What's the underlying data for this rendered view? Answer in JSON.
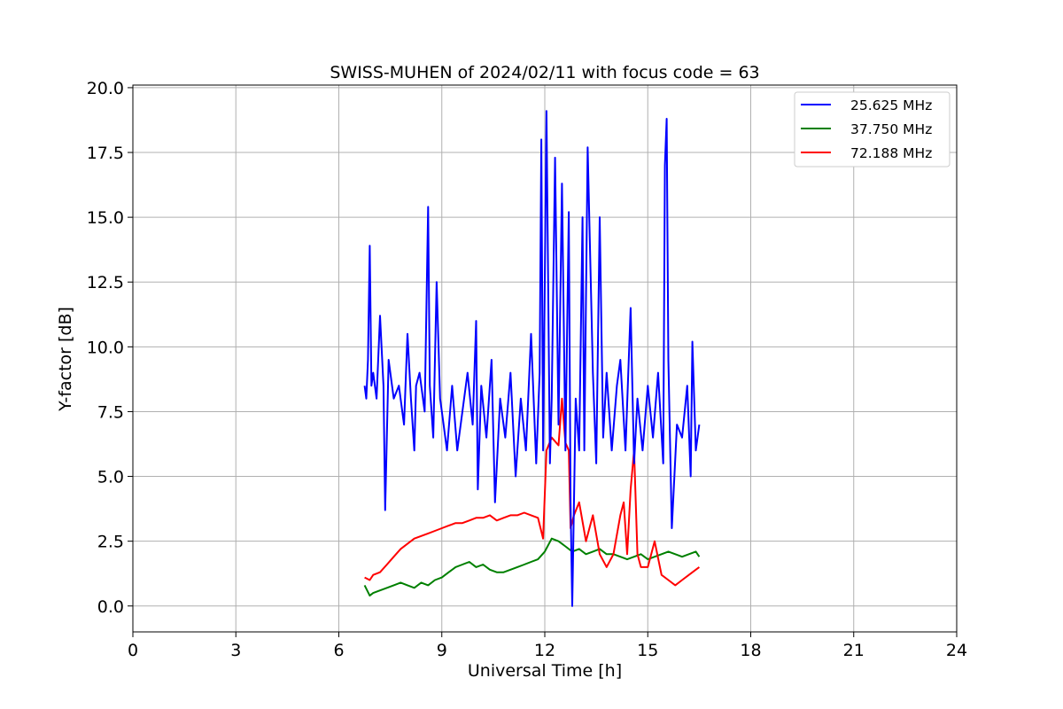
{
  "chart_data": {
    "type": "line",
    "title": "SWISS-MUHEN of 2024/02/11 with focus code = 63",
    "xlabel": "Universal Time [h]",
    "ylabel": "Y-factor [dB]",
    "xlim": [
      0,
      24
    ],
    "ylim": [
      -1.0,
      20.1
    ],
    "x_ticks": [
      0,
      3,
      6,
      9,
      12,
      15,
      18,
      21,
      24
    ],
    "y_ticks": [
      0.0,
      2.5,
      5.0,
      7.5,
      10.0,
      12.5,
      15.0,
      17.5,
      20.0
    ],
    "x_tick_labels": [
      "0",
      "3",
      "6",
      "9",
      "12",
      "15",
      "18",
      "21",
      "24"
    ],
    "y_tick_labels": [
      "0.0",
      "2.5",
      "5.0",
      "7.5",
      "10.0",
      "12.5",
      "15.0",
      "17.5",
      "20.0"
    ],
    "grid": true,
    "legend_position": "top-right",
    "series": [
      {
        "name": "25.625 MHz",
        "color": "#0000ff",
        "x": [
          6.75,
          6.8,
          6.85,
          6.9,
          6.95,
          7.0,
          7.1,
          7.2,
          7.3,
          7.35,
          7.45,
          7.6,
          7.75,
          7.9,
          8.0,
          8.1,
          8.2,
          8.25,
          8.35,
          8.5,
          8.6,
          8.65,
          8.75,
          8.85,
          8.95,
          9.0,
          9.15,
          9.3,
          9.45,
          9.6,
          9.75,
          9.9,
          10.0,
          10.05,
          10.15,
          10.3,
          10.45,
          10.55,
          10.7,
          10.85,
          11.0,
          11.15,
          11.3,
          11.45,
          11.6,
          11.75,
          11.85,
          11.9,
          11.95,
          12.05,
          12.15,
          12.2,
          12.3,
          12.4,
          12.5,
          12.6,
          12.7,
          12.75,
          12.8,
          12.9,
          13.0,
          13.1,
          13.15,
          13.25,
          13.4,
          13.5,
          13.6,
          13.7,
          13.8,
          13.95,
          14.1,
          14.2,
          14.35,
          14.5,
          14.6,
          14.7,
          14.85,
          15.0,
          15.15,
          15.3,
          15.45,
          15.5,
          15.55,
          15.6,
          15.7,
          15.85,
          16.0,
          16.15,
          16.25,
          16.3,
          16.4,
          16.5
        ],
        "y": [
          8.5,
          8.0,
          9.5,
          13.9,
          8.5,
          9.0,
          8.0,
          11.2,
          8.5,
          3.7,
          9.5,
          8.0,
          8.5,
          7.0,
          10.5,
          8.0,
          6.0,
          8.5,
          9.0,
          7.5,
          15.4,
          8.5,
          6.5,
          12.5,
          8.0,
          7.5,
          6.0,
          8.5,
          6.0,
          7.5,
          9.0,
          7.0,
          11.0,
          4.5,
          8.5,
          6.5,
          9.5,
          4.0,
          8.0,
          6.5,
          9.0,
          5.0,
          8.0,
          6.0,
          10.5,
          5.5,
          9.0,
          18.0,
          6.0,
          19.1,
          5.5,
          8.0,
          17.3,
          7.0,
          16.3,
          6.0,
          15.2,
          4.0,
          0.0,
          8.0,
          6.0,
          15.0,
          6.0,
          17.7,
          9.0,
          5.5,
          15.0,
          6.5,
          9.0,
          6.0,
          8.5,
          9.5,
          6.0,
          11.5,
          5.5,
          8.0,
          6.0,
          8.5,
          6.5,
          9.0,
          5.5,
          17.0,
          18.8,
          9.5,
          3.0,
          7.0,
          6.5,
          8.5,
          5.0,
          10.2,
          6.0,
          7.0
        ]
      },
      {
        "name": "37.750 MHz",
        "color": "#008000",
        "x": [
          6.75,
          6.9,
          7.0,
          7.2,
          7.4,
          7.6,
          7.8,
          8.0,
          8.2,
          8.4,
          8.6,
          8.8,
          9.0,
          9.2,
          9.4,
          9.6,
          9.8,
          10.0,
          10.2,
          10.4,
          10.6,
          10.8,
          11.0,
          11.2,
          11.4,
          11.6,
          11.8,
          12.0,
          12.2,
          12.4,
          12.6,
          12.8,
          13.0,
          13.2,
          13.4,
          13.6,
          13.8,
          14.0,
          14.2,
          14.4,
          14.6,
          14.8,
          15.0,
          15.2,
          15.4,
          15.6,
          15.8,
          16.0,
          16.2,
          16.4,
          16.5
        ],
        "y": [
          0.8,
          0.4,
          0.5,
          0.6,
          0.7,
          0.8,
          0.9,
          0.8,
          0.7,
          0.9,
          0.8,
          1.0,
          1.1,
          1.3,
          1.5,
          1.6,
          1.7,
          1.5,
          1.6,
          1.4,
          1.3,
          1.3,
          1.4,
          1.5,
          1.6,
          1.7,
          1.8,
          2.1,
          2.6,
          2.5,
          2.3,
          2.1,
          2.2,
          2.0,
          2.1,
          2.2,
          2.0,
          2.0,
          1.9,
          1.8,
          1.9,
          2.0,
          1.8,
          1.9,
          2.0,
          2.1,
          2.0,
          1.9,
          2.0,
          2.1,
          1.9
        ]
      },
      {
        "name": "72.188 MHz",
        "color": "#ff0000",
        "x": [
          6.75,
          6.9,
          7.0,
          7.2,
          7.4,
          7.6,
          7.8,
          8.0,
          8.2,
          8.4,
          8.6,
          8.8,
          9.0,
          9.2,
          9.4,
          9.6,
          9.8,
          10.0,
          10.2,
          10.4,
          10.6,
          10.8,
          11.0,
          11.2,
          11.4,
          11.6,
          11.8,
          11.95,
          12.05,
          12.2,
          12.4,
          12.5,
          12.6,
          12.7,
          12.75,
          12.85,
          13.0,
          13.2,
          13.4,
          13.6,
          13.8,
          14.0,
          14.2,
          14.3,
          14.4,
          14.5,
          14.6,
          14.7,
          14.8,
          15.0,
          15.2,
          15.4,
          15.6,
          15.8,
          16.0,
          16.2,
          16.4,
          16.5
        ],
        "y": [
          1.1,
          1.0,
          1.2,
          1.3,
          1.6,
          1.9,
          2.2,
          2.4,
          2.6,
          2.7,
          2.8,
          2.9,
          3.0,
          3.1,
          3.2,
          3.2,
          3.3,
          3.4,
          3.4,
          3.5,
          3.3,
          3.4,
          3.5,
          3.5,
          3.6,
          3.5,
          3.4,
          2.6,
          6.0,
          6.5,
          6.2,
          8.0,
          6.3,
          6.0,
          3.0,
          3.5,
          4.0,
          2.5,
          3.5,
          2.0,
          1.5,
          2.0,
          3.5,
          4.0,
          2.0,
          4.5,
          6.0,
          2.0,
          1.5,
          1.5,
          2.5,
          1.2,
          1.0,
          0.8,
          1.0,
          1.2,
          1.4,
          1.5
        ]
      }
    ]
  }
}
